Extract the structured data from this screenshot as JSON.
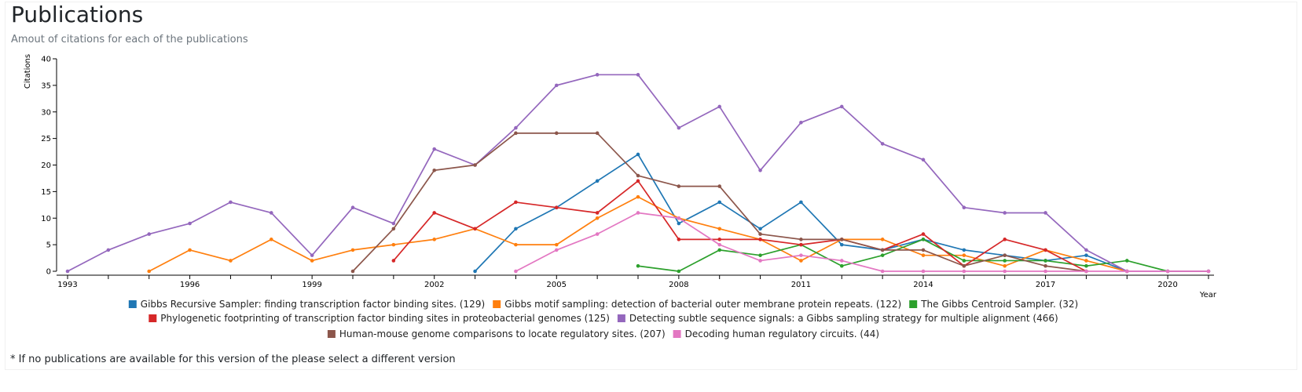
{
  "page": {
    "title": "Publications",
    "subtitle": "Amout of citations for each of the publications",
    "footnote": "* If no publications are available for this version of the please select a different version"
  },
  "chart_data": {
    "type": "line",
    "ylabel": "Citations",
    "xlabel": "Year",
    "xlim": [
      1993,
      2021
    ],
    "ylim": [
      0,
      40
    ],
    "x_ticks": [
      1993,
      1996,
      1999,
      2002,
      2005,
      2008,
      2011,
      2014,
      2017,
      2020
    ],
    "y_ticks": [
      0,
      5,
      10,
      15,
      20,
      25,
      30,
      35,
      40
    ],
    "grid": false,
    "legend_position": "bottom",
    "series": [
      {
        "name": "Gibbs Recursive Sampler: finding transcription factor binding sites. (129)",
        "color": "#1f77b4",
        "points": [
          [
            2003,
            0
          ],
          [
            2004,
            8
          ],
          [
            2005,
            12
          ],
          [
            2006,
            17
          ],
          [
            2007,
            22
          ],
          [
            2008,
            9
          ],
          [
            2009,
            13
          ],
          [
            2010,
            8
          ],
          [
            2011,
            13
          ],
          [
            2012,
            5
          ],
          [
            2013,
            4
          ],
          [
            2014,
            6
          ],
          [
            2015,
            4
          ],
          [
            2016,
            3
          ],
          [
            2017,
            2
          ],
          [
            2018,
            3
          ],
          [
            2019,
            0
          ]
        ]
      },
      {
        "name": "Gibbs motif sampling: detection of bacterial outer membrane protein repeats. (122)",
        "color": "#ff7f0e",
        "points": [
          [
            1995,
            0
          ],
          [
            1996,
            4
          ],
          [
            1997,
            2
          ],
          [
            1998,
            6
          ],
          [
            1999,
            2
          ],
          [
            2000,
            4
          ],
          [
            2001,
            5
          ],
          [
            2002,
            6
          ],
          [
            2003,
            8
          ],
          [
            2004,
            5
          ],
          [
            2005,
            5
          ],
          [
            2006,
            10
          ],
          [
            2007,
            14
          ],
          [
            2008,
            10
          ],
          [
            2009,
            8
          ],
          [
            2010,
            6
          ],
          [
            2011,
            2
          ],
          [
            2012,
            6
          ],
          [
            2013,
            6
          ],
          [
            2014,
            3
          ],
          [
            2015,
            3
          ],
          [
            2016,
            1
          ],
          [
            2017,
            4
          ],
          [
            2018,
            2
          ],
          [
            2019,
            0
          ]
        ]
      },
      {
        "name": "The Gibbs Centroid Sampler. (32)",
        "color": "#2ca02c",
        "points": [
          [
            2007,
            1
          ],
          [
            2008,
            0
          ],
          [
            2009,
            4
          ],
          [
            2010,
            3
          ],
          [
            2011,
            5
          ],
          [
            2012,
            1
          ],
          [
            2013,
            3
          ],
          [
            2014,
            6
          ],
          [
            2015,
            2
          ],
          [
            2016,
            2
          ],
          [
            2017,
            2
          ],
          [
            2018,
            1
          ],
          [
            2019,
            2
          ],
          [
            2020,
            0
          ],
          [
            2021,
            0
          ]
        ]
      },
      {
        "name": "Phylogenetic footprinting of transcription factor binding sites in proteobacterial genomes (125)",
        "color": "#d62728",
        "points": [
          [
            2001,
            2
          ],
          [
            2002,
            11
          ],
          [
            2003,
            8
          ],
          [
            2004,
            13
          ],
          [
            2005,
            12
          ],
          [
            2006,
            11
          ],
          [
            2007,
            17
          ],
          [
            2008,
            6
          ],
          [
            2009,
            6
          ],
          [
            2010,
            6
          ],
          [
            2011,
            5
          ],
          [
            2012,
            6
          ],
          [
            2013,
            4
          ],
          [
            2014,
            7
          ],
          [
            2015,
            1
          ],
          [
            2016,
            6
          ],
          [
            2017,
            4
          ],
          [
            2018,
            0
          ]
        ]
      },
      {
        "name": "Detecting subtle sequence signals: a Gibbs sampling strategy for multiple alignment (466)",
        "color": "#9467bd",
        "points": [
          [
            1993,
            0
          ],
          [
            1994,
            4
          ],
          [
            1995,
            7
          ],
          [
            1996,
            9
          ],
          [
            1997,
            13
          ],
          [
            1998,
            11
          ],
          [
            1999,
            3
          ],
          [
            2000,
            12
          ],
          [
            2001,
            9
          ],
          [
            2002,
            23
          ],
          [
            2003,
            20
          ],
          [
            2004,
            27
          ],
          [
            2005,
            35
          ],
          [
            2006,
            37
          ],
          [
            2007,
            37
          ],
          [
            2008,
            27
          ],
          [
            2009,
            31
          ],
          [
            2010,
            19
          ],
          [
            2011,
            28
          ],
          [
            2012,
            31
          ],
          [
            2013,
            24
          ],
          [
            2014,
            21
          ],
          [
            2015,
            12
          ],
          [
            2016,
            11
          ],
          [
            2017,
            11
          ],
          [
            2018,
            4
          ],
          [
            2019,
            0
          ],
          [
            2020,
            0
          ],
          [
            2021,
            0
          ]
        ]
      },
      {
        "name": "Human-mouse genome comparisons to locate regulatory sites. (207)",
        "color": "#8c564b",
        "points": [
          [
            2000,
            0
          ],
          [
            2001,
            8
          ],
          [
            2002,
            19
          ],
          [
            2003,
            20
          ],
          [
            2004,
            26
          ],
          [
            2005,
            26
          ],
          [
            2006,
            26
          ],
          [
            2007,
            18
          ],
          [
            2008,
            16
          ],
          [
            2009,
            16
          ],
          [
            2010,
            7
          ],
          [
            2011,
            6
          ],
          [
            2012,
            6
          ],
          [
            2013,
            4
          ],
          [
            2014,
            4
          ],
          [
            2015,
            1
          ],
          [
            2016,
            3
          ],
          [
            2017,
            1
          ],
          [
            2018,
            0
          ]
        ]
      },
      {
        "name": "Decoding human regulatory circuits. (44)",
        "color": "#e377c2",
        "points": [
          [
            2004,
            0
          ],
          [
            2005,
            4
          ],
          [
            2006,
            7
          ],
          [
            2007,
            11
          ],
          [
            2008,
            10
          ],
          [
            2009,
            5
          ],
          [
            2010,
            2
          ],
          [
            2011,
            3
          ],
          [
            2012,
            2
          ],
          [
            2013,
            0
          ],
          [
            2014,
            0
          ],
          [
            2015,
            0
          ],
          [
            2016,
            0
          ],
          [
            2017,
            0
          ],
          [
            2018,
            0
          ],
          [
            2019,
            0
          ],
          [
            2020,
            0
          ],
          [
            2021,
            0
          ]
        ]
      }
    ]
  }
}
